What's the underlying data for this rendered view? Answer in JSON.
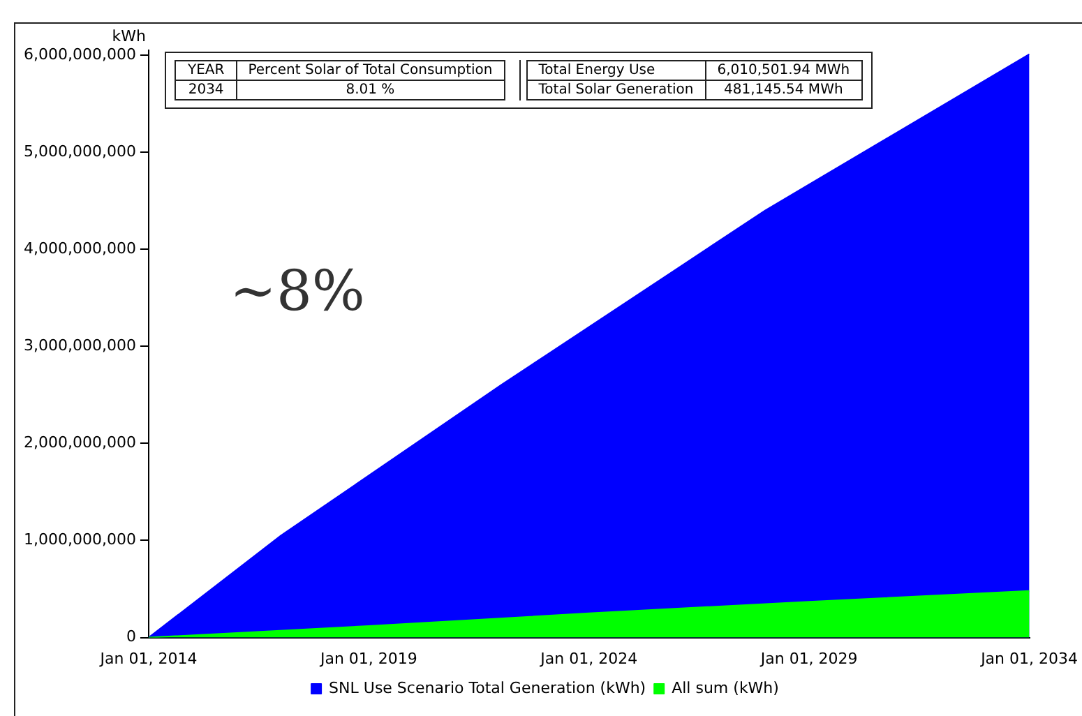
{
  "chart_data": {
    "type": "area",
    "ylabel": "kWh",
    "series": [
      {
        "name": "SNL Use Scenario Total Generation (kWh)",
        "color": "#0000ff",
        "x": [
          "2014",
          "2016",
          "2017",
          "2022",
          "2026",
          "2028",
          "2034"
        ],
        "values": [
          0,
          700000000,
          1050000000,
          2600000000,
          3800000000,
          4400000000,
          6010000000
        ]
      },
      {
        "name": "All sum (kWh)",
        "color": "#00ff00",
        "x": [
          "2014",
          "2019",
          "2024",
          "2029",
          "2034"
        ],
        "values": [
          0,
          120000000,
          250000000,
          370000000,
          480000000
        ]
      }
    ],
    "xlim": [
      "2014-01-01",
      "2034-01-01"
    ],
    "xticks": [
      {
        "value": "2014-01-01",
        "label": "Jan 01, 2014"
      },
      {
        "value": "2019-01-01",
        "label": "Jan 01, 2019"
      },
      {
        "value": "2024-01-01",
        "label": "Jan 01, 2024"
      },
      {
        "value": "2029-01-01",
        "label": "Jan 01, 2029"
      },
      {
        "value": "2034-01-01",
        "label": "Jan 01, 2034"
      }
    ],
    "ylim": [
      0,
      6050000000
    ],
    "yticks": [
      0,
      {
        "value": 1000000000,
        "label": "1,000,000,000"
      },
      {
        "value": 2000000000,
        "label": "2,000,000,000"
      },
      {
        "value": 3000000000,
        "label": "3,000,000,000"
      },
      {
        "value": 4000000000,
        "label": "4,000,000,000"
      },
      {
        "value": 5000000000,
        "label": "5,000,000,000"
      },
      {
        "value": 6000000000,
        "label": "6,000,000,000"
      }
    ],
    "annotations": [
      "YEAR",
      "Percent Solar of Total Consumption",
      "2034",
      "8.01 %",
      "Total Energy Use",
      "6,010,501.94 MWh",
      "Total Solar Generation",
      "481,145.54 MWh",
      "~8%"
    ],
    "grid": false,
    "legend": "bottom",
    "marker": "none"
  }
}
